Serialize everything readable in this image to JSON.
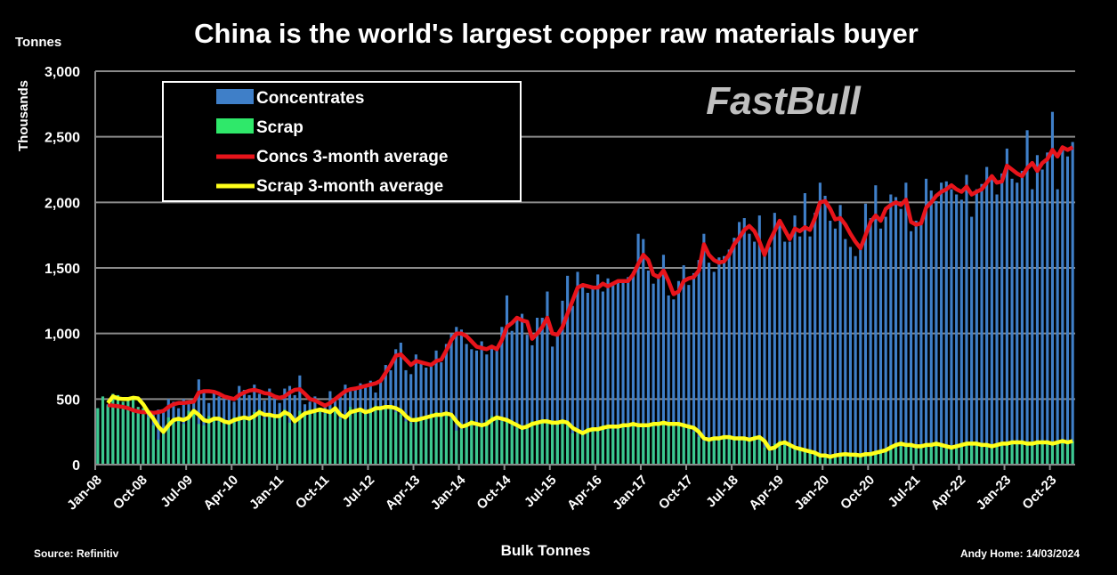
{
  "chart_data": {
    "type": "bar",
    "title": "China is the world's largest copper raw materials buyer",
    "ylabel_top": "Tonnes",
    "ylabel": "Thousands",
    "xlabel": "Bulk Tonnes",
    "source": "Source: Refinitiv",
    "credit": "Andy Home: 14/03/2024",
    "watermark": "FastBull",
    "frequency": "monthly",
    "ylim": [
      0,
      3000
    ],
    "y_ticks": [
      0,
      500,
      1000,
      1500,
      2000,
      2500,
      3000
    ],
    "y_tick_labels": [
      "0",
      "500",
      "1,000",
      "1,500",
      "2,000",
      "2,500",
      "3,000"
    ],
    "x_tick_labels": [
      "Jan-08",
      "Oct-08",
      "Jul-09",
      "Apr-10",
      "Jan-11",
      "Oct-11",
      "Jul-12",
      "Apr-13",
      "Jan-14",
      "Oct-14",
      "Jul-15",
      "Apr-16",
      "Jan-17",
      "Oct-17",
      "Jul-18",
      "Apr-19",
      "Jan-20",
      "Oct-20",
      "Jul-21",
      "Apr-22",
      "Jan-23",
      "Oct-23"
    ],
    "x_tick_interval_months": 9,
    "grid": true,
    "legend_placement": "top-left",
    "series": [
      {
        "name": "Concentrates",
        "kind": "bar",
        "color": "#3f7fc8",
        "values": [
          430,
          470,
          460,
          440,
          450,
          420,
          430,
          400,
          390,
          410,
          400,
          380,
          420,
          400,
          500,
          480,
          430,
          500,
          470,
          470,
          650,
          560,
          470,
          550,
          520,
          500,
          520,
          480,
          600,
          570,
          530,
          610,
          540,
          490,
          580,
          500,
          470,
          580,
          600,
          530,
          680,
          460,
          480,
          520,
          420,
          440,
          560,
          510,
          520,
          610,
          560,
          580,
          620,
          590,
          640,
          550,
          650,
          760,
          720,
          880,
          930,
          720,
          690,
          840,
          780,
          740,
          760,
          870,
          780,
          920,
          1000,
          1050,
          1030,
          920,
          880,
          870,
          940,
          840,
          910,
          880,
          1050,
          1290,
          1020,
          1120,
          1150,
          990,
          910,
          1120,
          1120,
          1320,
          900,
          980,
          1250,
          1440,
          1210,
          1470,
          1380,
          1310,
          1360,
          1450,
          1320,
          1420,
          1390,
          1410,
          1400,
          1430,
          1470,
          1760,
          1720,
          1480,
          1380,
          1420,
          1600,
          1290,
          1260,
          1400,
          1520,
          1370,
          1460,
          1560,
          1760,
          1540,
          1470,
          1580,
          1590,
          1640,
          1730,
          1850,
          1880,
          1760,
          1700,
          1900,
          1630,
          1660,
          1920,
          1840,
          1700,
          1700,
          1900,
          1740,
          2070,
          1740,
          1920,
          2150,
          2050,
          1860,
          1800,
          1980,
          1720,
          1660,
          1590,
          1680,
          1990,
          1880,
          2130,
          1800,
          1890,
          2060,
          2040,
          1950,
          2150,
          1780,
          1860,
          1830,
          2180,
          2090,
          2010,
          2150,
          2160,
          2100,
          2060,
          2020,
          2210,
          1890,
          2100,
          2140,
          2270,
          2190,
          2060,
          2220,
          2410,
          2180,
          2150,
          2240,
          2550,
          2100,
          2360,
          2250,
          2380,
          2690,
          2100,
          2430,
          2350,
          2460
        ]
      },
      {
        "name": "Scrap",
        "kind": "bar",
        "color": "#3cc98e",
        "legend_color": "#2fe86a",
        "values": [
          430,
          520,
          450,
          540,
          530,
          480,
          500,
          520,
          440,
          430,
          360,
          300,
          190,
          250,
          360,
          350,
          350,
          310,
          410,
          420,
          310,
          300,
          370,
          360,
          330,
          320,
          330,
          360,
          370,
          340,
          360,
          400,
          420,
          350,
          380,
          360,
          390,
          420,
          320,
          350,
          410,
          400,
          420,
          420,
          410,
          390,
          410,
          440,
          350,
          360,
          440,
          420,
          400,
          390,
          430,
          450,
          420,
          450,
          450,
          400,
          380,
          330,
          320,
          360,
          360,
          360,
          390,
          400,
          370,
          400,
          350,
          260,
          270,
          320,
          340,
          290,
          290,
          340,
          370,
          370,
          330,
          330,
          300,
          280,
          270,
          310,
          330,
          330,
          340,
          330,
          310,
          330,
          340,
          300,
          240,
          240,
          250,
          280,
          280,
          260,
          300,
          290,
          280,
          300,
          310,
          300,
          320,
          290,
          310,
          300,
          320,
          300,
          330,
          310,
          300,
          310,
          290,
          290,
          250,
          210,
          180,
          190,
          210,
          200,
          220,
          200,
          190,
          210,
          190,
          180,
          220,
          200,
          130,
          100,
          160,
          180,
          170,
          140,
          120,
          110,
          110,
          90,
          80,
          60,
          70,
          60,
          70,
          80,
          80,
          70,
          80,
          70,
          80,
          80,
          100,
          110,
          120,
          150,
          160,
          160,
          140,
          150,
          140,
          140,
          160,
          150,
          160,
          150,
          130,
          140,
          150,
          160,
          160,
          160,
          160,
          140,
          150,
          140,
          160,
          160,
          160,
          170,
          170,
          170,
          150,
          160,
          180,
          170,
          160,
          160,
          180,
          190,
          170,
          180
        ]
      },
      {
        "name": "Concs 3-month average",
        "kind": "line",
        "color": "#e8141b",
        "values": [
          null,
          null,
          455,
          450,
          445,
          440,
          430,
          415,
          405,
          400,
          400,
          395,
          400,
          410,
          440,
          460,
          470,
          470,
          475,
          480,
          550,
          560,
          560,
          555,
          540,
          520,
          510,
          500,
          530,
          550,
          565,
          570,
          560,
          545,
          540,
          520,
          510,
          520,
          550,
          570,
          575,
          540,
          500,
          490,
          470,
          450,
          470,
          500,
          530,
          560,
          575,
          580,
          590,
          600,
          610,
          620,
          640,
          700,
          760,
          830,
          840,
          800,
          760,
          790,
          780,
          770,
          760,
          790,
          800,
          870,
          950,
          1000,
          1000,
          980,
          940,
          900,
          890,
          880,
          900,
          880,
          950,
          1050,
          1080,
          1120,
          1100,
          1090,
          960,
          1000,
          1050,
          1120,
          1000,
          990,
          1050,
          1150,
          1250,
          1350,
          1370,
          1360,
          1350,
          1350,
          1380,
          1360,
          1380,
          1400,
          1400,
          1400,
          1450,
          1530,
          1600,
          1560,
          1450,
          1430,
          1480,
          1400,
          1300,
          1320,
          1400,
          1420,
          1430,
          1480,
          1680,
          1600,
          1560,
          1540,
          1550,
          1600,
          1680,
          1730,
          1790,
          1820,
          1780,
          1700,
          1600,
          1700,
          1780,
          1860,
          1790,
          1720,
          1800,
          1780,
          1810,
          1790,
          1880,
          2000,
          2010,
          1950,
          1870,
          1880,
          1830,
          1760,
          1700,
          1650,
          1750,
          1850,
          1900,
          1860,
          1950,
          1980,
          2000,
          1980,
          2020,
          1850,
          1830,
          1840,
          1960,
          2000,
          2050,
          2080,
          2100,
          2130,
          2100,
          2080,
          2120,
          2060,
          2080,
          2100,
          2150,
          2200,
          2150,
          2160,
          2280,
          2250,
          2220,
          2200,
          2260,
          2300,
          2240,
          2300,
          2330,
          2400,
          2350,
          2420,
          2400,
          2420
        ]
      },
      {
        "name": "Scrap 3-month average",
        "kind": "line",
        "color": "#ffff1a",
        "values": [
          null,
          null,
          470,
          520,
          505,
          500,
          500,
          510,
          505,
          460,
          400,
          350,
          290,
          250,
          300,
          340,
          350,
          340,
          360,
          410,
          380,
          340,
          330,
          350,
          350,
          330,
          320,
          340,
          350,
          360,
          350,
          370,
          400,
          380,
          380,
          370,
          370,
          400,
          380,
          330,
          360,
          390,
          400,
          410,
          420,
          410,
          400,
          430,
          380,
          360,
          400,
          410,
          420,
          400,
          410,
          430,
          430,
          440,
          440,
          430,
          410,
          370,
          340,
          340,
          350,
          360,
          370,
          380,
          380,
          390,
          380,
          330,
          290,
          300,
          320,
          310,
          300,
          310,
          340,
          360,
          350,
          340,
          320,
          300,
          280,
          290,
          310,
          320,
          330,
          330,
          320,
          320,
          330,
          320,
          280,
          260,
          240,
          260,
          270,
          270,
          280,
          290,
          290,
          290,
          300,
          300,
          310,
          300,
          300,
          300,
          310,
          310,
          320,
          310,
          310,
          310,
          300,
          290,
          280,
          250,
          200,
          190,
          200,
          200,
          210,
          210,
          200,
          200,
          200,
          190,
          200,
          210,
          180,
          120,
          130,
          160,
          170,
          150,
          130,
          120,
          110,
          100,
          90,
          70,
          70,
          60,
          70,
          75,
          80,
          75,
          75,
          70,
          80,
          80,
          90,
          100,
          110,
          130,
          150,
          160,
          150,
          150,
          140,
          140,
          150,
          150,
          160,
          150,
          140,
          130,
          140,
          150,
          160,
          160,
          160,
          150,
          150,
          140,
          150,
          160,
          160,
          170,
          170,
          170,
          160,
          160,
          170,
          170,
          170,
          160,
          170,
          180,
          170,
          180
        ]
      }
    ]
  }
}
